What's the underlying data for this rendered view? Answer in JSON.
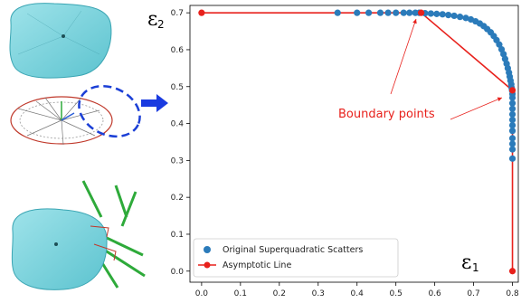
{
  "chart_data": {
    "type": "scatter",
    "xlim": [
      -0.03,
      0.815
    ],
    "ylim": [
      -0.03,
      0.72
    ],
    "x_ticks": [
      "0.0",
      "0.1",
      "0.2",
      "0.3",
      "0.4",
      "0.5",
      "0.6",
      "0.7",
      "0.8"
    ],
    "y_ticks": [
      "0.0",
      "0.1",
      "0.2",
      "0.3",
      "0.4",
      "0.5",
      "0.6",
      "0.7"
    ],
    "xlabel": "ε",
    "xlabel_sub": "1",
    "ylabel": "ε",
    "ylabel_sub": "2",
    "grid": false,
    "legend_position": "bottom-left",
    "series": [
      {
        "name": "Original Superquadratic Scatters",
        "kind": "scatter",
        "color": "#2b7bba",
        "x": [
          0.35,
          0.4,
          0.43,
          0.46,
          0.48,
          0.5,
          0.52,
          0.535,
          0.55,
          0.56,
          0.575,
          0.59,
          0.605,
          0.62,
          0.635,
          0.65,
          0.665,
          0.68,
          0.693,
          0.705,
          0.716,
          0.726,
          0.735,
          0.744,
          0.752,
          0.759,
          0.766,
          0.772,
          0.777,
          0.781,
          0.785,
          0.788,
          0.791,
          0.793,
          0.795,
          0.797,
          0.798,
          0.799,
          0.8,
          0.8,
          0.8,
          0.8,
          0.8,
          0.8,
          0.8,
          0.8,
          0.8,
          0.8,
          0.8,
          0.8
        ],
        "y": [
          0.7,
          0.7,
          0.7,
          0.7,
          0.7,
          0.7,
          0.7,
          0.7,
          0.7,
          0.7,
          0.699,
          0.698,
          0.697,
          0.696,
          0.694,
          0.692,
          0.689,
          0.686,
          0.682,
          0.677,
          0.671,
          0.664,
          0.656,
          0.647,
          0.637,
          0.626,
          0.614,
          0.601,
          0.588,
          0.575,
          0.562,
          0.55,
          0.538,
          0.527,
          0.516,
          0.506,
          0.497,
          0.49,
          0.48,
          0.47,
          0.455,
          0.44,
          0.425,
          0.41,
          0.395,
          0.38,
          0.36,
          0.345,
          0.33,
          0.305
        ]
      },
      {
        "name": "Asymptotic Line",
        "kind": "line",
        "color": "#e8211c",
        "x": [
          0.0,
          0.565,
          0.8,
          0.8
        ],
        "y": [
          0.7,
          0.7,
          0.49,
          0.0
        ]
      }
    ],
    "annotations": [
      {
        "text": "Boundary points",
        "x": 0.5,
        "y": 0.475,
        "arrows_to": [
          [
            0.565,
            0.7
          ],
          [
            0.8,
            0.49
          ]
        ]
      }
    ]
  }
}
